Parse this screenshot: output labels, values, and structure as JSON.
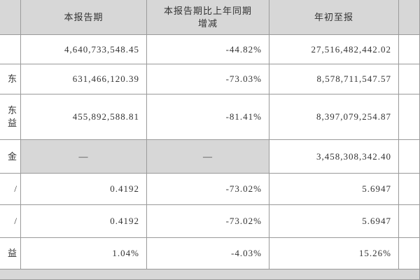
{
  "table": {
    "header": [
      "",
      "本报告期",
      [
        "本报告期比上年同期",
        "增减"
      ],
      "年初至报",
      ""
    ],
    "rows": [
      [
        "",
        "4,640,733,548.45",
        "-44.82%",
        "27,516,482,442.02",
        ""
      ],
      [
        "东",
        "631,466,120.39",
        "-73.03%",
        "8,578,711,547.57",
        ""
      ],
      [
        [
          "东",
          "益"
        ],
        "455,892,588.81",
        "-81.41%",
        "8,397,079,254.87",
        ""
      ],
      [
        "金",
        "—",
        "—",
        "3,458,308,342.40",
        ""
      ],
      [
        "/",
        "0.4192",
        "-73.02%",
        "5.6947",
        ""
      ],
      [
        "/",
        "0.4192",
        "-73.02%",
        "5.6947",
        ""
      ],
      [
        "益",
        "1.04%",
        "-4.03%",
        "15.26%",
        ""
      ]
    ]
  }
}
